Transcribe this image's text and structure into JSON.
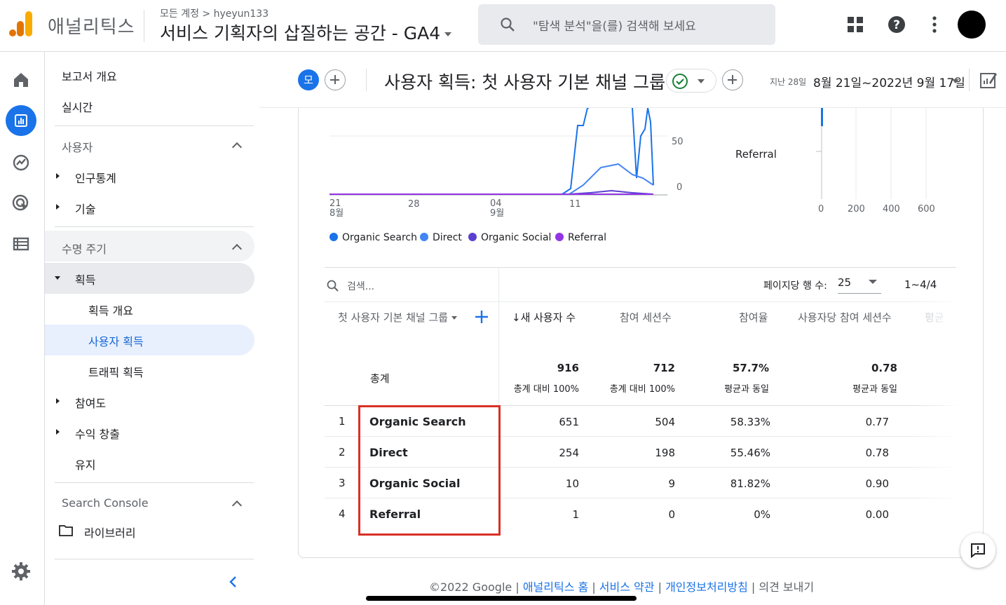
{
  "app": {
    "name": "애널리틱스",
    "breadcrumb": "모든 계정 > hyeyun133",
    "property": "서비스 기획자의 삽질하는 공간 - GA4"
  },
  "search": {
    "placeholder": "\"탐색 분석\"을(를) 검색해 보세요"
  },
  "nav": {
    "overview": "보고서 개요",
    "realtime": "실시간",
    "section_user": "사용자",
    "demographics": "인구통계",
    "tech": "기술",
    "section_lifecycle": "수명 주기",
    "acquisition": "획득",
    "acq_overview": "획득 개요",
    "user_acq": "사용자 획득",
    "traffic_acq": "트래픽 획득",
    "engagement": "참여도",
    "monetization": "수익 창출",
    "retention": "유지",
    "section_sc": "Search Console",
    "library": "라이브러리"
  },
  "header": {
    "comparison_chip": "모",
    "title": "사용자 획득: 첫 사용자 기본 채널 그룹",
    "date_label": "지난 28일",
    "date_range": "8월 21일~2022년 9월 17일"
  },
  "chart_data": [
    {
      "type": "line",
      "x_ticks": [
        "21\n8월",
        "28",
        "04\n9월",
        "11"
      ],
      "y_ticks": [
        "50",
        "0"
      ],
      "series": [
        {
          "name": "Organic Search",
          "color": "#1a73e8"
        },
        {
          "name": "Direct",
          "color": "#4285f4"
        },
        {
          "name": "Organic Social",
          "color": "#5b3fd1"
        },
        {
          "name": "Referral",
          "color": "#9334e6"
        }
      ]
    },
    {
      "type": "bar",
      "categories_visible": [
        "Referral"
      ],
      "x_ticks": [
        "0",
        "200",
        "400",
        "600"
      ]
    }
  ],
  "legend": [
    "Organic Search",
    "Direct",
    "Organic Social",
    "Referral"
  ],
  "table": {
    "search_placeholder": "검색...",
    "rows_per_page_label": "페이지당 행 수:",
    "rows_per_page": "25",
    "pagination": "1~4/4",
    "dimension_header": "첫 사용자 기본 채널 그룹",
    "columns": [
      "↓새 사용자 수",
      "참여 세션수",
      "참여율",
      "사용자당 참여 세션수",
      "평균"
    ],
    "totals": {
      "label": "총계",
      "values": [
        "916",
        "712",
        "57.7%",
        "0.78"
      ],
      "subs": [
        "총계 대비 100%",
        "총계 대비 100%",
        "평균과 동일",
        "평균과 동일"
      ]
    },
    "rows": [
      {
        "rank": "1",
        "name": "Organic Search",
        "values": [
          "651",
          "504",
          "58.33%",
          "0.77"
        ]
      },
      {
        "rank": "2",
        "name": "Direct",
        "values": [
          "254",
          "198",
          "55.46%",
          "0.78"
        ]
      },
      {
        "rank": "3",
        "name": "Organic Social",
        "values": [
          "10",
          "9",
          "81.82%",
          "0.90"
        ]
      },
      {
        "rank": "4",
        "name": "Referral",
        "values": [
          "1",
          "0",
          "0%",
          "0.00"
        ]
      }
    ]
  },
  "footer": {
    "copyright": "©2022 Google",
    "link1": "애널리틱스 홈",
    "link2": "서비스 약관",
    "link3": "개인정보처리방침",
    "feedback": "의견 보내기",
    "separator": "|"
  },
  "colors": {
    "accent": "#1a73e8",
    "highlight_box": "#d93025",
    "selected_nav_bg": "#e8f0fe"
  }
}
